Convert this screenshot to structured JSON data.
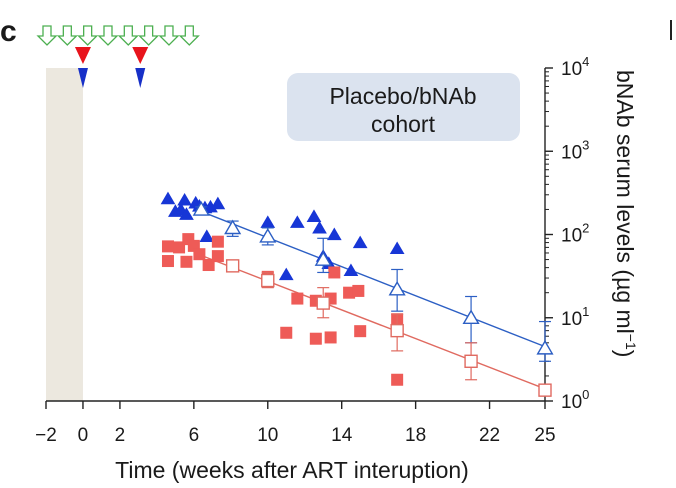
{
  "panel_label": "c",
  "cohort_label": [
    "Placebo/bNAb",
    "cohort"
  ],
  "colors": {
    "blue": "#1736d6",
    "red": "#ee5b57",
    "blue_line": "#2c5fc4",
    "red_line": "#e06a60",
    "shade": "#ece8df",
    "label_box": "#dbe3ef",
    "arrow_green": "#4caf50",
    "arrow_red": "#e8141c",
    "arrow_blue": "#1730c8"
  },
  "chart_data": {
    "type": "scatter",
    "title": "",
    "xlabel": "Time (weeks after ART interuption)",
    "ylabel": "bNAb serum levels (µg ml",
    "ylabel_sup": "−1",
    "y_scale": "log",
    "xlim": [
      -2,
      25
    ],
    "ylim": [
      1,
      10000
    ],
    "x_ticks": [
      -2,
      0,
      2,
      6,
      10,
      14,
      18,
      22,
      25
    ],
    "x_tick_labels": [
      "−2",
      "0",
      "2",
      "6",
      "10",
      "14",
      "18",
      "22",
      "25"
    ],
    "y_ticks": [
      1,
      10,
      100,
      1000,
      10000
    ],
    "y_tick_labels": [
      {
        "base": "10",
        "exp": "0"
      },
      {
        "base": "10",
        "exp": "1"
      },
      {
        "base": "10",
        "exp": "2"
      },
      {
        "base": "10",
        "exp": "3"
      },
      {
        "base": "10",
        "exp": "4"
      }
    ],
    "shaded_x": [
      -2,
      0
    ],
    "infusion_arrows_green_x": [
      -2,
      -0.9,
      0.2,
      1.3,
      2.4,
      3.5,
      4.6,
      5.7
    ],
    "dose_markers_x": [
      0,
      3.1
    ],
    "series": [
      {
        "marker": "filled-triangle",
        "points": [
          [
            4.6,
            270
          ],
          [
            5.0,
            190
          ],
          [
            5.3,
            200
          ],
          [
            5.5,
            260
          ],
          [
            5.6,
            175
          ],
          [
            6.1,
            240
          ],
          [
            6.3,
            220
          ],
          [
            6.6,
            210
          ],
          [
            6.9,
            215
          ],
          [
            7.3,
            235
          ],
          [
            6.7,
            95
          ],
          [
            10.0,
            140
          ],
          [
            11.0,
            33
          ],
          [
            11.6,
            140
          ],
          [
            12.5,
            165
          ],
          [
            12.8,
            120
          ],
          [
            13.0,
            55
          ],
          [
            13.3,
            45
          ],
          [
            13.6,
            100
          ],
          [
            14.5,
            37
          ],
          [
            15.0,
            80
          ],
          [
            17.0,
            68
          ]
        ]
      },
      {
        "marker": "filled-square",
        "points": [
          [
            4.6,
            72
          ],
          [
            4.6,
            48
          ],
          [
            5.2,
            70
          ],
          [
            5.7,
            88
          ],
          [
            5.6,
            47
          ],
          [
            6.0,
            73
          ],
          [
            6.3,
            58
          ],
          [
            6.8,
            43
          ],
          [
            7.3,
            82
          ],
          [
            7.3,
            55
          ],
          [
            10.0,
            27
          ],
          [
            10.0,
            31
          ],
          [
            11.0,
            6.6
          ],
          [
            11.6,
            17
          ],
          [
            12.6,
            16
          ],
          [
            12.6,
            5.6
          ],
          [
            13.4,
            5.8
          ],
          [
            13.6,
            35
          ],
          [
            13.4,
            17
          ],
          [
            14.4,
            20
          ],
          [
            14.9,
            21
          ],
          [
            15.0,
            6.9
          ],
          [
            17.0,
            9.6
          ],
          [
            17.0,
            1.8
          ]
        ]
      },
      {
        "marker": "open-triangle",
        "points": [
          {
            "x": 6.4,
            "y": 200,
            "lo": 185,
            "hi": 215
          },
          {
            "x": 8.1,
            "y": 120,
            "lo": 95,
            "hi": 145
          },
          {
            "x": 10.0,
            "y": 95,
            "lo": 75,
            "hi": 120
          },
          {
            "x": 13.0,
            "y": 50,
            "lo": 35,
            "hi": 90
          },
          {
            "x": 17.0,
            "y": 22,
            "lo": 12,
            "hi": 38
          },
          {
            "x": 21.0,
            "y": 10,
            "lo": 5,
            "hi": 18
          },
          {
            "x": 25.0,
            "y": 4.3,
            "lo": 3.0,
            "hi": 9
          }
        ]
      },
      {
        "marker": "open-square",
        "points": [
          {
            "x": 8.1,
            "y": 42,
            "lo": 38,
            "hi": 48
          },
          {
            "x": 10.0,
            "y": 28,
            "lo": 23,
            "hi": 35
          },
          {
            "x": 13.0,
            "y": 15,
            "lo": 10,
            "hi": 23
          },
          {
            "x": 17.0,
            "y": 7,
            "lo": 4,
            "hi": 11
          },
          {
            "x": 21.0,
            "y": 3,
            "lo": 1.8,
            "hi": 5
          },
          {
            "x": 25.0,
            "y": 1.35,
            "lo": 1.2,
            "hi": 1.5
          }
        ]
      }
    ],
    "fit_lines": [
      {
        "x": [
          6.0,
          25.0
        ],
        "y": [
          205,
          4.5
        ]
      },
      {
        "x": [
          6.5,
          25.0
        ],
        "y": [
          55,
          1.4
        ]
      }
    ]
  }
}
